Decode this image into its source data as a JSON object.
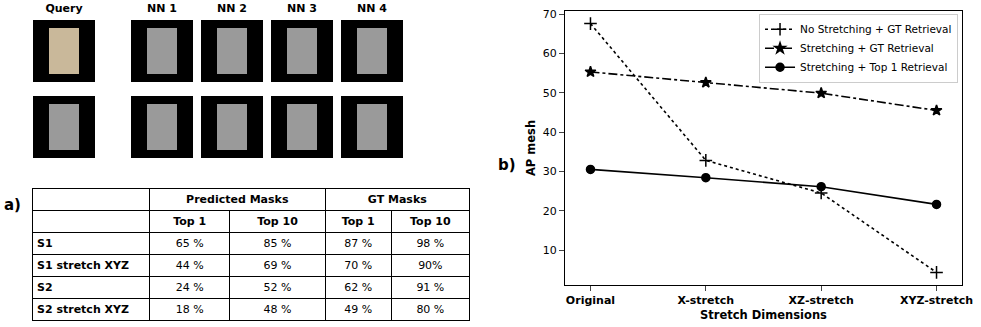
{
  "panel_labels": [
    "a)",
    "b)"
  ],
  "image_grid": {
    "headers": [
      "Query",
      "NN 1",
      "NN 2",
      "NN 3",
      "NN 4"
    ],
    "rows": 2
  },
  "table": {
    "header": [
      {
        "text": "",
        "span": 1
      },
      {
        "text": "Predicted Masks",
        "span": 2
      },
      {
        "text": "GT Masks",
        "span": 2
      }
    ],
    "subheader": [
      "",
      "Top 1",
      "Top 10",
      "Top 1",
      "Top 10"
    ],
    "rows": [
      [
        "S1",
        "65 %",
        "85 %",
        "87 %",
        "98 %"
      ],
      [
        "S1 stretch XYZ",
        "44 %",
        "69 %",
        "70 %",
        "90%"
      ],
      [
        "S2",
        "24 %",
        "52 %",
        "62 %",
        "91 %"
      ],
      [
        "S2 stretch XYZ",
        "18 %",
        "48 %",
        "49 %",
        "80 %"
      ]
    ]
  },
  "chart_data": {
    "type": "line",
    "x_label": "Stretch Dimensions",
    "y_label": "AP mesh",
    "categories": [
      "Original",
      "X-stretch",
      "XZ-stretch",
      "XYZ-stretch"
    ],
    "series": [
      {
        "name": "No Stretching + GT Retrieval",
        "color": "#000000",
        "line_style": "dotted",
        "marker": "plus",
        "values": [
          67.6,
          32.8,
          24.5,
          4.3
        ]
      },
      {
        "name": "Stretching + GT Retrieval",
        "color": "#000000",
        "line_style": "dashdot",
        "marker": "star",
        "values": [
          55.3,
          52.6,
          49.9,
          45.5
        ]
      },
      {
        "name": "Stretching + Top 1 Retrieval",
        "color": "#000000",
        "line_style": "solid",
        "marker": "circle",
        "values": [
          30.5,
          28.4,
          26.1,
          21.6
        ]
      }
    ],
    "ylim": [
      1.1,
      70.8
    ],
    "yticks": [
      10,
      20,
      30,
      40,
      50,
      60,
      70
    ],
    "legend": "upper right",
    "grid": false
  }
}
